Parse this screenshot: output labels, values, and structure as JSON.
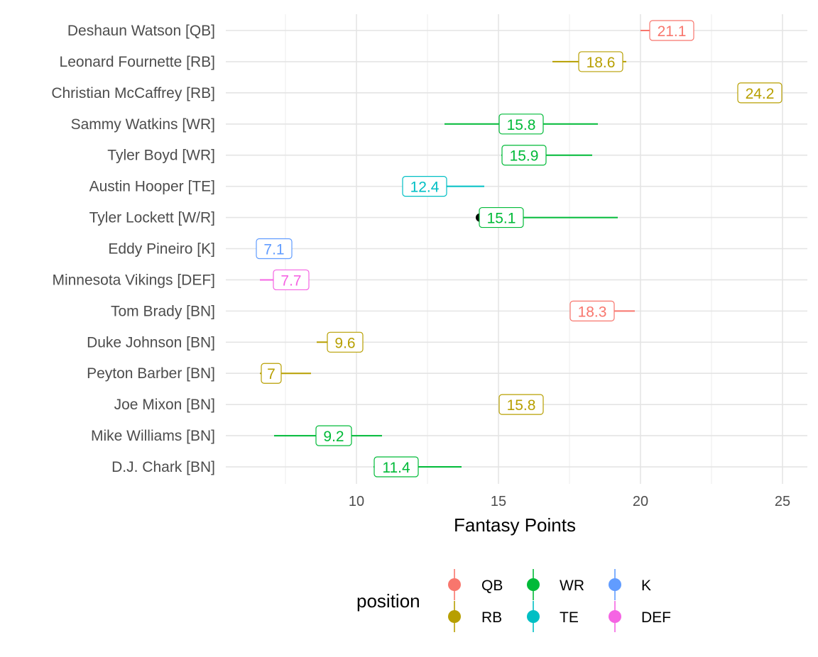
{
  "chart_data": {
    "type": "pointrange",
    "title": "",
    "xlabel": "Fantasy Points",
    "ylabel": "",
    "xlim": [
      5.5,
      26
    ],
    "xticks": [
      10,
      15,
      20,
      25
    ],
    "grid": true,
    "legend_position": "bottom",
    "legend": {
      "title": "position",
      "entries": [
        {
          "label": "QB",
          "color": "#F8766D"
        },
        {
          "label": "RB",
          "color": "#B79F00"
        },
        {
          "label": "WR",
          "color": "#00BA38"
        },
        {
          "label": "TE",
          "color": "#00BFC4"
        },
        {
          "label": "K",
          "color": "#619CFF"
        },
        {
          "label": "DEF",
          "color": "#F564E3"
        }
      ]
    },
    "rows": [
      {
        "player": "Deshaun Watson [QB]",
        "position": "QB",
        "value": 21.1,
        "low": 20.0,
        "high": 20.9
      },
      {
        "player": "Leonard Fournette [RB]",
        "position": "RB",
        "value": 18.6,
        "low": 16.9,
        "high": 19.5
      },
      {
        "player": "Christian McCaffrey [RB]",
        "position": "RB",
        "value": 24.2,
        "low": 23.5,
        "high": 24.9
      },
      {
        "player": "Sammy Watkins [WR]",
        "position": "WR",
        "value": 15.8,
        "low": 13.1,
        "high": 18.5
      },
      {
        "player": "Tyler Boyd [WR]",
        "position": "WR",
        "value": 15.9,
        "low": 15.1,
        "high": 18.3
      },
      {
        "player": "Austin Hooper [TE]",
        "position": "TE",
        "value": 12.4,
        "low": 11.7,
        "high": 14.5
      },
      {
        "player": "Tyler Lockett [W/R]",
        "position": "WR",
        "value": 15.1,
        "low": 14.4,
        "high": 19.2
      },
      {
        "player": "Eddy Pineiro [K]",
        "position": "K",
        "value": 7.1,
        "low": null,
        "high": null
      },
      {
        "player": "Minnesota Vikings [DEF]",
        "position": "DEF",
        "value": 7.7,
        "low": 6.6,
        "high": 7.7
      },
      {
        "player": "Tom Brady [BN]",
        "position": "QB",
        "value": 18.3,
        "low": 17.8,
        "high": 19.8
      },
      {
        "player": "Duke Johnson [BN]",
        "position": "RB",
        "value": 9.6,
        "low": 8.6,
        "high": 9.6
      },
      {
        "player": "Peyton Barber [BN]",
        "position": "RB",
        "value": 7,
        "low": 6.6,
        "high": 8.4
      },
      {
        "player": "Joe Mixon [BN]",
        "position": "RB",
        "value": 15.8,
        "low": null,
        "high": null
      },
      {
        "player": "Mike Williams [BN]",
        "position": "WR",
        "value": 9.2,
        "low": 7.1,
        "high": 10.9
      },
      {
        "player": "D.J. Chark [BN]",
        "position": "WR",
        "value": 11.4,
        "low": 10.6,
        "high": 13.7
      }
    ],
    "highlight_point": {
      "player": "Tyler Lockett [W/R]",
      "value": 14.35,
      "color": "#000000"
    }
  }
}
